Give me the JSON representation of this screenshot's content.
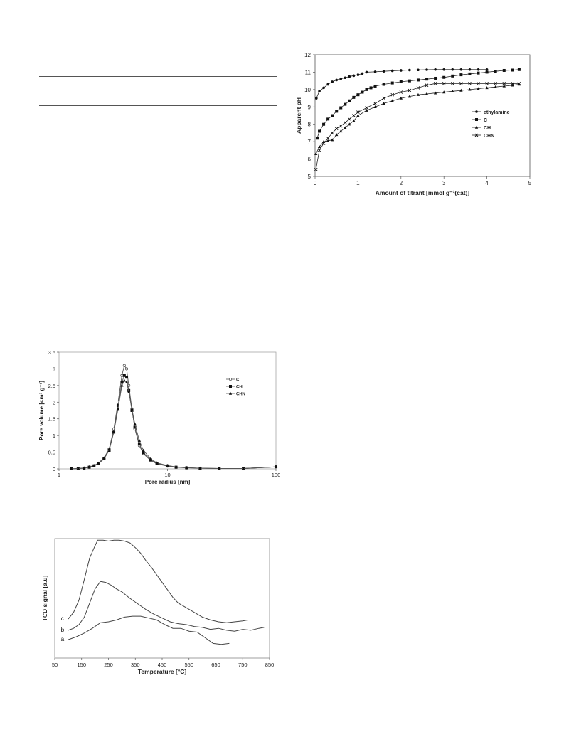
{
  "chart_data": [
    {
      "type": "line",
      "xlabel": "Amount of titrant [mmol g⁻¹(cat)]",
      "ylabel": "Apparent pH",
      "xlim": [
        0,
        5
      ],
      "ylim": [
        5,
        12
      ],
      "x_ticks": [
        "0",
        "1",
        "2",
        "3",
        "4",
        "5"
      ],
      "y_ticks": [
        "5",
        "6",
        "7",
        "8",
        "9",
        "10",
        "11",
        "12"
      ],
      "legend_position": "right",
      "series": [
        {
          "name": "ethylamine",
          "marker": "dot",
          "x": [
            0.03,
            0.1,
            0.2,
            0.3,
            0.4,
            0.5,
            0.6,
            0.7,
            0.8,
            0.9,
            1.0,
            1.1,
            1.2,
            1.4,
            1.6,
            1.8,
            2.0,
            2.2,
            2.4,
            2.6,
            2.8,
            3.0,
            3.2,
            3.4,
            3.6,
            3.8,
            4.0
          ],
          "y": [
            9.5,
            9.9,
            10.1,
            10.3,
            10.45,
            10.55,
            10.62,
            10.68,
            10.75,
            10.8,
            10.85,
            10.92,
            11.0,
            11.02,
            11.05,
            11.08,
            11.1,
            11.12,
            11.13,
            11.14,
            11.15,
            11.15,
            11.15,
            11.15,
            11.15,
            11.15,
            11.15
          ]
        },
        {
          "name": "C",
          "marker": "square",
          "x": [
            0.05,
            0.1,
            0.2,
            0.3,
            0.4,
            0.5,
            0.6,
            0.7,
            0.8,
            0.9,
            1.0,
            1.1,
            1.2,
            1.3,
            1.4,
            1.6,
            1.8,
            2.0,
            2.2,
            2.4,
            2.6,
            2.8,
            3.0,
            3.2,
            3.4,
            3.6,
            3.8,
            4.0,
            4.2,
            4.4,
            4.6,
            4.75
          ],
          "y": [
            7.2,
            7.6,
            8.0,
            8.3,
            8.5,
            8.75,
            8.95,
            9.15,
            9.35,
            9.55,
            9.7,
            9.85,
            10.0,
            10.1,
            10.2,
            10.3,
            10.38,
            10.45,
            10.5,
            10.55,
            10.6,
            10.65,
            10.7,
            10.78,
            10.85,
            10.9,
            10.95,
            11.0,
            11.05,
            11.1,
            11.12,
            11.15
          ]
        },
        {
          "name": "CH",
          "marker": "triangle",
          "x": [
            0.02,
            0.1,
            0.2,
            0.3,
            0.4,
            0.5,
            0.6,
            0.7,
            0.8,
            0.9,
            1.0,
            1.2,
            1.4,
            1.6,
            1.8,
            2.0,
            2.2,
            2.4,
            2.6,
            2.8,
            3.0,
            3.2,
            3.4,
            3.6,
            3.8,
            4.0,
            4.2,
            4.4,
            4.6,
            4.75
          ],
          "y": [
            6.3,
            6.7,
            7.0,
            7.05,
            7.1,
            7.4,
            7.6,
            7.8,
            8.0,
            8.2,
            8.5,
            8.8,
            9.0,
            9.2,
            9.35,
            9.5,
            9.6,
            9.7,
            9.75,
            9.8,
            9.85,
            9.9,
            9.95,
            10.0,
            10.05,
            10.1,
            10.15,
            10.2,
            10.25,
            10.3
          ]
        },
        {
          "name": "CHN",
          "marker": "cross",
          "x": [
            0.02,
            0.1,
            0.2,
            0.3,
            0.4,
            0.5,
            0.6,
            0.7,
            0.8,
            0.9,
            1.0,
            1.2,
            1.4,
            1.6,
            1.8,
            2.0,
            2.2,
            2.4,
            2.6,
            2.8,
            3.0,
            3.2,
            3.4,
            3.6,
            3.8,
            4.0,
            4.2,
            4.4,
            4.6,
            4.75
          ],
          "y": [
            5.4,
            6.5,
            6.9,
            7.2,
            7.5,
            7.75,
            7.9,
            8.1,
            8.3,
            8.5,
            8.7,
            8.95,
            9.2,
            9.5,
            9.7,
            9.85,
            9.95,
            10.1,
            10.25,
            10.35,
            10.35,
            10.35,
            10.35,
            10.35,
            10.35,
            10.35,
            10.35,
            10.35,
            10.35,
            10.35
          ]
        }
      ]
    },
    {
      "type": "line",
      "xlabel": "Pore radius [nm]",
      "ylabel": "Pore volume [cm³ g⁻¹]",
      "xscale": "log",
      "xlim": [
        1,
        100
      ],
      "ylim": [
        0,
        3.5
      ],
      "x_ticks": [
        "1",
        "10",
        "100"
      ],
      "y_ticks": [
        "0",
        "0.5",
        "1",
        "1.5",
        "2",
        "2.5",
        "3",
        "3.5"
      ],
      "legend_position": "right",
      "series": [
        {
          "name": "C",
          "x": [
            1.3,
            1.5,
            1.7,
            1.9,
            2.1,
            2.3,
            2.6,
            2.9,
            3.2,
            3.5,
            3.8,
            4.0,
            4.2,
            4.4,
            4.7,
            5.0,
            5.5,
            6.0,
            7.0,
            8.0,
            10,
            12,
            15,
            20,
            30,
            50,
            100
          ],
          "y": [
            0,
            0.01,
            0.02,
            0.05,
            0.09,
            0.15,
            0.3,
            0.6,
            1.2,
            2.0,
            2.8,
            3.1,
            3.0,
            2.5,
            1.8,
            1.2,
            0.7,
            0.45,
            0.25,
            0.15,
            0.08,
            0.05,
            0.03,
            0.02,
            0.01,
            0.01,
            0.06
          ]
        },
        {
          "name": "CH",
          "x": [
            1.3,
            1.5,
            1.7,
            1.9,
            2.1,
            2.3,
            2.6,
            2.9,
            3.2,
            3.5,
            3.8,
            4.0,
            4.2,
            4.4,
            4.7,
            5.0,
            5.5,
            6.0,
            7.0,
            8.0,
            10,
            12,
            15,
            20,
            30,
            50,
            100
          ],
          "y": [
            0,
            0.01,
            0.02,
            0.05,
            0.09,
            0.15,
            0.3,
            0.55,
            1.1,
            1.9,
            2.6,
            2.8,
            2.75,
            2.35,
            1.75,
            1.25,
            0.75,
            0.48,
            0.27,
            0.16,
            0.09,
            0.05,
            0.03,
            0.02,
            0.01,
            0.01,
            0.06
          ]
        },
        {
          "name": "CHN",
          "x": [
            1.3,
            1.5,
            1.7,
            1.9,
            2.1,
            2.3,
            2.6,
            2.9,
            3.2,
            3.5,
            3.8,
            4.0,
            4.2,
            4.4,
            4.7,
            5.0,
            5.5,
            6.0,
            7.0,
            8.0,
            10,
            12,
            15,
            20,
            30,
            50,
            100
          ],
          "y": [
            0,
            0.01,
            0.03,
            0.06,
            0.1,
            0.17,
            0.33,
            0.6,
            1.1,
            1.8,
            2.5,
            2.65,
            2.6,
            2.3,
            1.8,
            1.35,
            0.85,
            0.55,
            0.3,
            0.18,
            0.1,
            0.06,
            0.04,
            0.02,
            0.01,
            0.01,
            0.06
          ]
        }
      ]
    },
    {
      "type": "line",
      "xlabel": "Temperature [°C]",
      "ylabel": "TCD signal [a.u]",
      "xlim": [
        50,
        850
      ],
      "x_ticks": [
        "50",
        "150",
        "250",
        "350",
        "450",
        "550",
        "650",
        "750",
        "850"
      ],
      "y_ticks_shown": false,
      "series": [
        {
          "name": "a",
          "x": [
            100,
            130,
            160,
            190,
            220,
            250,
            280,
            310,
            340,
            370,
            400,
            430,
            460,
            490,
            520,
            550,
            580,
            610,
            640,
            670,
            700
          ],
          "y": [
            0.06,
            0.09,
            0.13,
            0.18,
            0.24,
            0.25,
            0.27,
            0.3,
            0.31,
            0.31,
            0.29,
            0.27,
            0.22,
            0.18,
            0.18,
            0.15,
            0.14,
            0.08,
            0.02,
            0.01,
            0.02
          ]
        },
        {
          "name": "b",
          "x": [
            100,
            120,
            140,
            160,
            180,
            200,
            220,
            240,
            260,
            280,
            300,
            330,
            360,
            390,
            420,
            450,
            480,
            510,
            540,
            570,
            600,
            630,
            660,
            690,
            720,
            750,
            780,
            810,
            830
          ],
          "y": [
            0.16,
            0.18,
            0.22,
            0.3,
            0.45,
            0.6,
            0.68,
            0.67,
            0.64,
            0.6,
            0.57,
            0.5,
            0.44,
            0.38,
            0.33,
            0.29,
            0.25,
            0.23,
            0.22,
            0.2,
            0.19,
            0.17,
            0.18,
            0.16,
            0.15,
            0.17,
            0.16,
            0.18,
            0.19
          ]
        },
        {
          "name": "c",
          "x": [
            100,
            120,
            140,
            160,
            180,
            200,
            210,
            230,
            250,
            270,
            290,
            310,
            330,
            350,
            370,
            390,
            410,
            430,
            450,
            470,
            490,
            510,
            540,
            570,
            600,
            630,
            660,
            690,
            720,
            750,
            770
          ],
          "y": [
            0.28,
            0.35,
            0.48,
            0.7,
            0.93,
            1.06,
            1.12,
            1.12,
            1.11,
            1.12,
            1.12,
            1.11,
            1.09,
            1.04,
            0.98,
            0.9,
            0.83,
            0.75,
            0.67,
            0.59,
            0.51,
            0.45,
            0.4,
            0.35,
            0.3,
            0.27,
            0.25,
            0.24,
            0.25,
            0.26,
            0.27
          ]
        }
      ]
    }
  ]
}
